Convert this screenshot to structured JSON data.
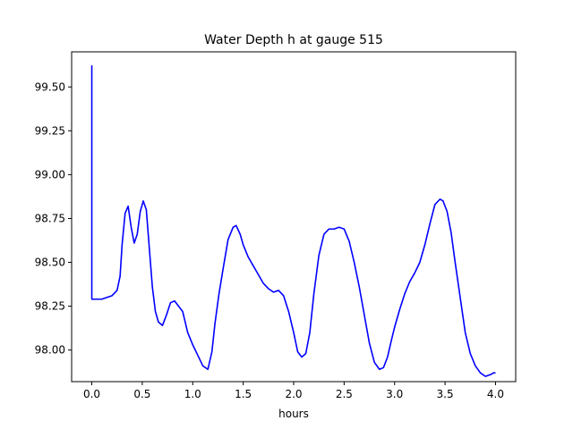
{
  "chart_data": {
    "type": "line",
    "title": "Water Depth h at gauge 515",
    "xlabel": "hours",
    "ylabel": "",
    "xlim": [
      -0.2,
      4.2
    ],
    "ylim": [
      97.82,
      99.7
    ],
    "x_ticks": [
      0.0,
      0.5,
      1.0,
      1.5,
      2.0,
      2.5,
      3.0,
      3.5,
      4.0
    ],
    "x_tick_labels": [
      "0.0",
      "0.5",
      "1.0",
      "1.5",
      "2.0",
      "2.5",
      "3.0",
      "3.5",
      "4.0"
    ],
    "y_ticks": [
      98.0,
      98.25,
      98.5,
      98.75,
      99.0,
      99.25,
      99.5
    ],
    "y_tick_labels": [
      "98.00",
      "98.25",
      "98.50",
      "98.75",
      "99.00",
      "99.25",
      "99.50"
    ],
    "grid": false,
    "line_color": "#0000ff",
    "series": [
      {
        "x": [
          0.0,
          0.0,
          0.0,
          0.05,
          0.1,
          0.15,
          0.2,
          0.25,
          0.28,
          0.3,
          0.33,
          0.36,
          0.39,
          0.42,
          0.45,
          0.48,
          0.51,
          0.54,
          0.57,
          0.6,
          0.63,
          0.66,
          0.7,
          0.74,
          0.78,
          0.82,
          0.86,
          0.9,
          0.95,
          1.0,
          1.05,
          1.1,
          1.15,
          1.19,
          1.22,
          1.26,
          1.3,
          1.35,
          1.4,
          1.43,
          1.47,
          1.5,
          1.55,
          1.6,
          1.65,
          1.7,
          1.75,
          1.8,
          1.85,
          1.9,
          1.95,
          2.0,
          2.04,
          2.08,
          2.12,
          2.16,
          2.2,
          2.25,
          2.3,
          2.35,
          2.4,
          2.45,
          2.5,
          2.55,
          2.6,
          2.65,
          2.7,
          2.75,
          2.8,
          2.85,
          2.89,
          2.93,
          2.97,
          3.0,
          3.05,
          3.1,
          3.15,
          3.2,
          3.25,
          3.3,
          3.35,
          3.4,
          3.45,
          3.48,
          3.52,
          3.56,
          3.6,
          3.65,
          3.7,
          3.75,
          3.8,
          3.85,
          3.9,
          3.95,
          3.98,
          4.0
        ],
        "y": [
          98.29,
          99.62,
          98.29,
          98.29,
          98.29,
          98.3,
          98.31,
          98.34,
          98.42,
          98.6,
          98.78,
          98.82,
          98.7,
          98.61,
          98.66,
          98.79,
          98.85,
          98.8,
          98.58,
          98.36,
          98.22,
          98.16,
          98.14,
          98.2,
          98.27,
          98.28,
          98.25,
          98.22,
          98.1,
          98.03,
          97.97,
          97.91,
          97.89,
          97.99,
          98.15,
          98.32,
          98.46,
          98.63,
          98.7,
          98.71,
          98.66,
          98.6,
          98.53,
          98.48,
          98.43,
          98.38,
          98.35,
          98.33,
          98.34,
          98.31,
          98.22,
          98.1,
          97.99,
          97.96,
          97.98,
          98.1,
          98.32,
          98.54,
          98.66,
          98.69,
          98.69,
          98.7,
          98.69,
          98.62,
          98.5,
          98.36,
          98.2,
          98.04,
          97.93,
          97.89,
          97.9,
          97.96,
          98.06,
          98.13,
          98.23,
          98.32,
          98.39,
          98.44,
          98.5,
          98.6,
          98.72,
          98.83,
          98.86,
          98.85,
          98.79,
          98.67,
          98.5,
          98.3,
          98.1,
          97.98,
          97.91,
          97.87,
          97.85,
          97.86,
          97.87,
          97.87
        ]
      }
    ]
  }
}
